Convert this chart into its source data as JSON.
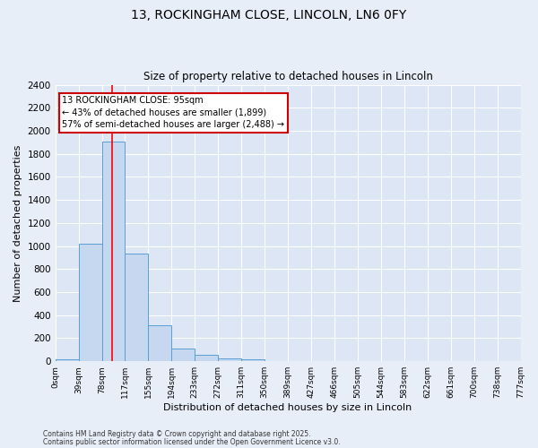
{
  "title_line1": "13, ROCKINGHAM CLOSE, LINCOLN, LN6 0FY",
  "title_line2": "Size of property relative to detached houses in Lincoln",
  "xlabel": "Distribution of detached houses by size in Lincoln",
  "ylabel": "Number of detached properties",
  "bin_labels": [
    "0sqm",
    "39sqm",
    "78sqm",
    "117sqm",
    "155sqm",
    "194sqm",
    "233sqm",
    "272sqm",
    "311sqm",
    "350sqm",
    "389sqm",
    "427sqm",
    "466sqm",
    "505sqm",
    "544sqm",
    "583sqm",
    "622sqm",
    "661sqm",
    "700sqm",
    "738sqm",
    "777sqm"
  ],
  "bar_values": [
    20,
    1020,
    1910,
    935,
    310,
    110,
    55,
    25,
    15,
    5,
    0,
    0,
    0,
    0,
    0,
    0,
    0,
    0,
    0,
    0
  ],
  "bar_color": "#c5d8f0",
  "bar_edge_color": "#5a9fd4",
  "background_color": "#dce6f5",
  "fig_background_color": "#e8eef8",
  "grid_color": "#ffffff",
  "red_line_x": 2.44,
  "annotation_text": "13 ROCKINGHAM CLOSE: 95sqm\n← 43% of detached houses are smaller (1,899)\n57% of semi-detached houses are larger (2,488) →",
  "annotation_box_color": "#ffffff",
  "annotation_box_edge": "#cc0000",
  "ylim": [
    0,
    2400
  ],
  "yticks": [
    0,
    200,
    400,
    600,
    800,
    1000,
    1200,
    1400,
    1600,
    1800,
    2000,
    2200,
    2400
  ],
  "footer_line1": "Contains HM Land Registry data © Crown copyright and database right 2025.",
  "footer_line2": "Contains public sector information licensed under the Open Government Licence v3.0."
}
